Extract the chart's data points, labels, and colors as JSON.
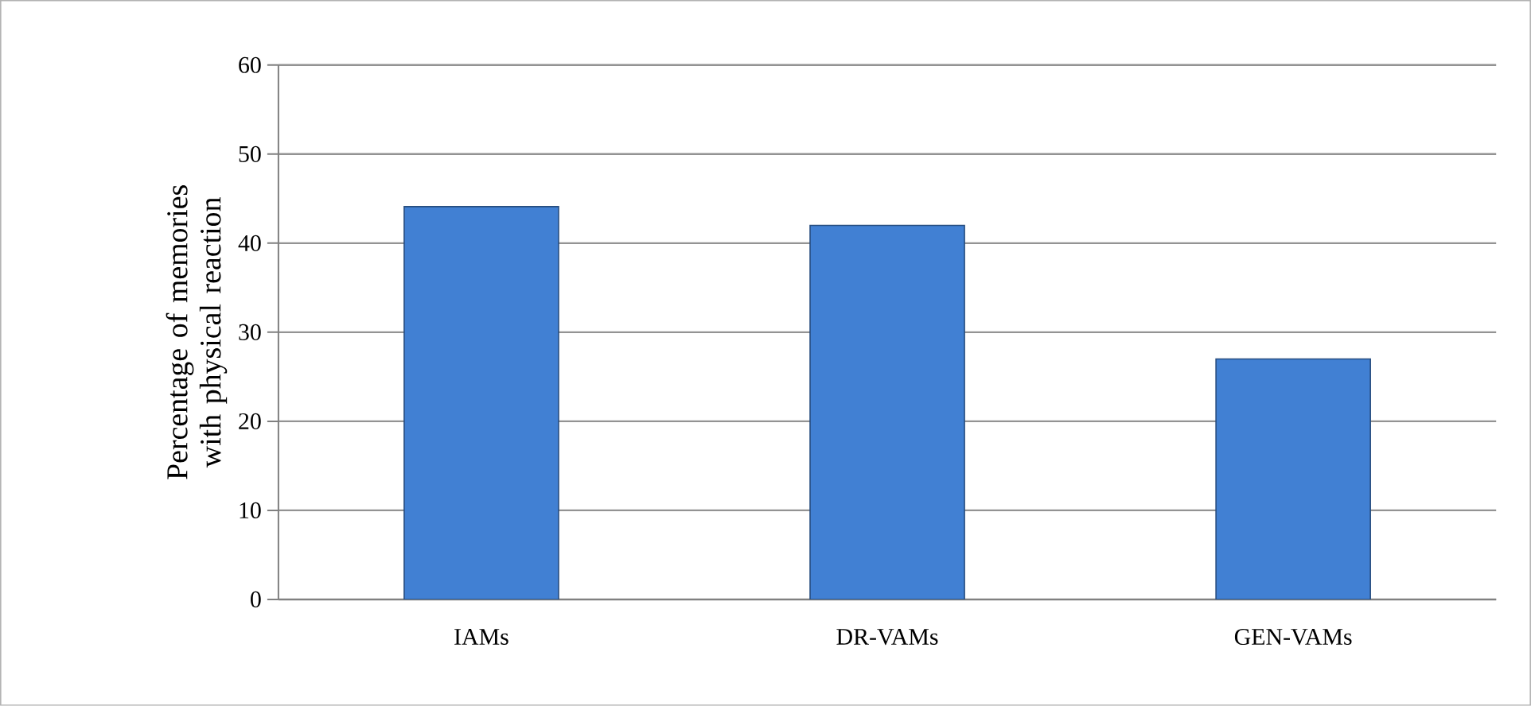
{
  "chart_data": {
    "type": "bar",
    "ylabel": "Percentage of memories with physical reaction",
    "categories": [
      "IAMs",
      "DR-VAMs",
      "GEN-VAMs"
    ],
    "values": [
      44.1,
      42,
      27
    ],
    "color": "#4180d3",
    "ylim": [
      0,
      60
    ],
    "yticks": [
      0,
      10,
      20,
      30,
      40,
      50,
      60
    ],
    "grid": "y"
  }
}
